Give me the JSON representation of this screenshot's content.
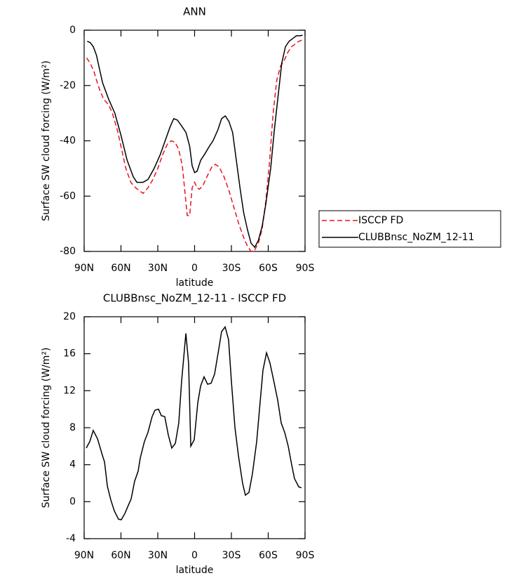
{
  "chart_data": [
    {
      "type": "line",
      "title": "ANN",
      "xlabel": "latitude",
      "ylabel": "Surface SW cloud forcing (W/m²)",
      "xlim": [
        90,
        -90
      ],
      "xticks": [
        {
          "value": 90,
          "label": "90N"
        },
        {
          "value": 60,
          "label": "60N"
        },
        {
          "value": 30,
          "label": "30N"
        },
        0,
        {
          "value": -30,
          "label": "30S"
        },
        {
          "value": -60,
          "label": "60S"
        },
        {
          "value": -90,
          "label": "90S"
        }
      ],
      "ylim": [
        -80,
        0
      ],
      "yticks": [
        -80,
        -60,
        -40,
        -20,
        0
      ],
      "legend": "right",
      "series": [
        {
          "name": "ISCCP FD",
          "color": "#e8141c",
          "linestyle": "dashed",
          "x": [
            88,
            85,
            82,
            80,
            77,
            74,
            70,
            67,
            63,
            60,
            56,
            52,
            48,
            45,
            42,
            38,
            34,
            30,
            26,
            22,
            19,
            16,
            13,
            10,
            8,
            6,
            4,
            2,
            0,
            -2,
            -4,
            -7,
            -10,
            -14,
            -17,
            -20,
            -24,
            -28,
            -32,
            -36,
            -40,
            -43,
            -46,
            -49,
            -52,
            -55,
            -58,
            -61,
            -64,
            -67,
            -70,
            -73,
            -76,
            -79,
            -82,
            -85,
            -88
          ],
          "values": [
            -10,
            -12,
            -15,
            -18,
            -22,
            -25,
            -27,
            -30,
            -36,
            -42,
            -50,
            -55,
            -57,
            -58,
            -59,
            -57,
            -54,
            -50,
            -45,
            -41,
            -40,
            -40.5,
            -43,
            -49,
            -58,
            -67,
            -67,
            -57,
            -55,
            -57,
            -57.5,
            -56,
            -53,
            -49.5,
            -48.5,
            -49.5,
            -53,
            -58,
            -64,
            -70,
            -75,
            -78,
            -80,
            -79.5,
            -77,
            -72,
            -62,
            -48,
            -30,
            -18,
            -13,
            -11,
            -8,
            -6,
            -5,
            -4,
            -3.5
          ]
        },
        {
          "name": "CLUBBnsc_NoZM_12-11",
          "color": "#000000",
          "linestyle": "solid",
          "x": [
            87.5,
            85,
            82.5,
            80,
            77.5,
            75,
            72.5,
            70,
            65,
            60,
            55,
            50,
            47,
            42,
            38,
            33,
            28,
            24,
            20,
            17,
            14,
            10,
            7,
            4,
            2,
            0,
            -2,
            -5,
            -8,
            -12,
            -15,
            -19,
            -22,
            -25,
            -28,
            -31,
            -34,
            -37,
            -40,
            -43,
            -46,
            -49,
            -52,
            -55,
            -58,
            -62,
            -65,
            -68,
            -71,
            -74,
            -77,
            -80,
            -83,
            -86,
            -88
          ],
          "values": [
            -4,
            -4.5,
            -6,
            -9,
            -14,
            -19,
            -22,
            -25,
            -30,
            -38,
            -47,
            -53,
            -55,
            -55,
            -54,
            -50,
            -45,
            -40,
            -35,
            -32,
            -32.5,
            -35,
            -37,
            -42,
            -49,
            -51.5,
            -51,
            -47,
            -45,
            -42,
            -40,
            -36,
            -32,
            -31,
            -33,
            -37,
            -47,
            -57,
            -66,
            -72,
            -77,
            -78.5,
            -76,
            -71,
            -63,
            -50,
            -36,
            -24,
            -12,
            -6,
            -4,
            -3,
            -2,
            -2,
            -1.8
          ]
        }
      ]
    },
    {
      "type": "line",
      "title": "CLUBBnsc_NoZM_12-11 - ISCCP FD",
      "xlabel": "latitude",
      "ylabel": "Surface SW cloud forcing (W/m²)",
      "xlim": [
        90,
        -90
      ],
      "xticks": [
        {
          "value": 90,
          "label": "90N"
        },
        {
          "value": 60,
          "label": "60N"
        },
        {
          "value": 30,
          "label": "30N"
        },
        0,
        {
          "value": -30,
          "label": "30S"
        },
        {
          "value": -60,
          "label": "60S"
        },
        {
          "value": -90,
          "label": "90S"
        }
      ],
      "ylim": [
        -4,
        20
      ],
      "yticks": [
        -4,
        0,
        4,
        8,
        12,
        16,
        20
      ],
      "series": [
        {
          "color": "#000000",
          "linestyle": "solid",
          "x": [
            88.3,
            85.4,
            82.6,
            79.1,
            75.1,
            73.4,
            71.1,
            68.3,
            65.4,
            62,
            59.7,
            56.9,
            54,
            51.7,
            48.9,
            46,
            44.3,
            40.9,
            38,
            34.6,
            32.3,
            29.4,
            27.1,
            24.3,
            21.4,
            18.6,
            15.7,
            12.9,
            10.6,
            7.1,
            4.9,
            3.1,
            0.3,
            -2.6,
            -4.9,
            -7.7,
            -10.6,
            -13.4,
            -16.3,
            -19.7,
            -22,
            -24.9,
            -27.7,
            -30,
            -32.9,
            -35.7,
            -39.1,
            -41.4,
            -44.3,
            -47.1,
            -50.6,
            -52.9,
            -55.7,
            -58.6,
            -61.4,
            -64.3,
            -67.7,
            -70.6,
            -73.4,
            -76.3,
            -79.1,
            -81.4,
            -84.9,
            -87.1
          ],
          "values": [
            5.8,
            6.5,
            7.7,
            6.8,
            5,
            4.3,
            1.7,
            0.2,
            -1,
            -1.9,
            -1.95,
            -1.3,
            -0.4,
            0.3,
            2.2,
            3.3,
            4.7,
            6.5,
            7.5,
            9.2,
            9.9,
            10,
            9.3,
            9.2,
            7.2,
            5.8,
            6.3,
            8.5,
            13,
            18.2,
            15,
            6,
            6.7,
            10.7,
            12.5,
            13.5,
            12.7,
            12.8,
            13.8,
            16.5,
            18.4,
            18.9,
            17.5,
            13,
            8,
            5,
            2,
            0.7,
            1,
            3,
            6.5,
            10,
            14.2,
            16.1,
            15,
            13.2,
            11,
            8.5,
            7.5,
            6,
            4,
            2.5,
            1.6,
            1.5
          ]
        }
      ]
    }
  ]
}
